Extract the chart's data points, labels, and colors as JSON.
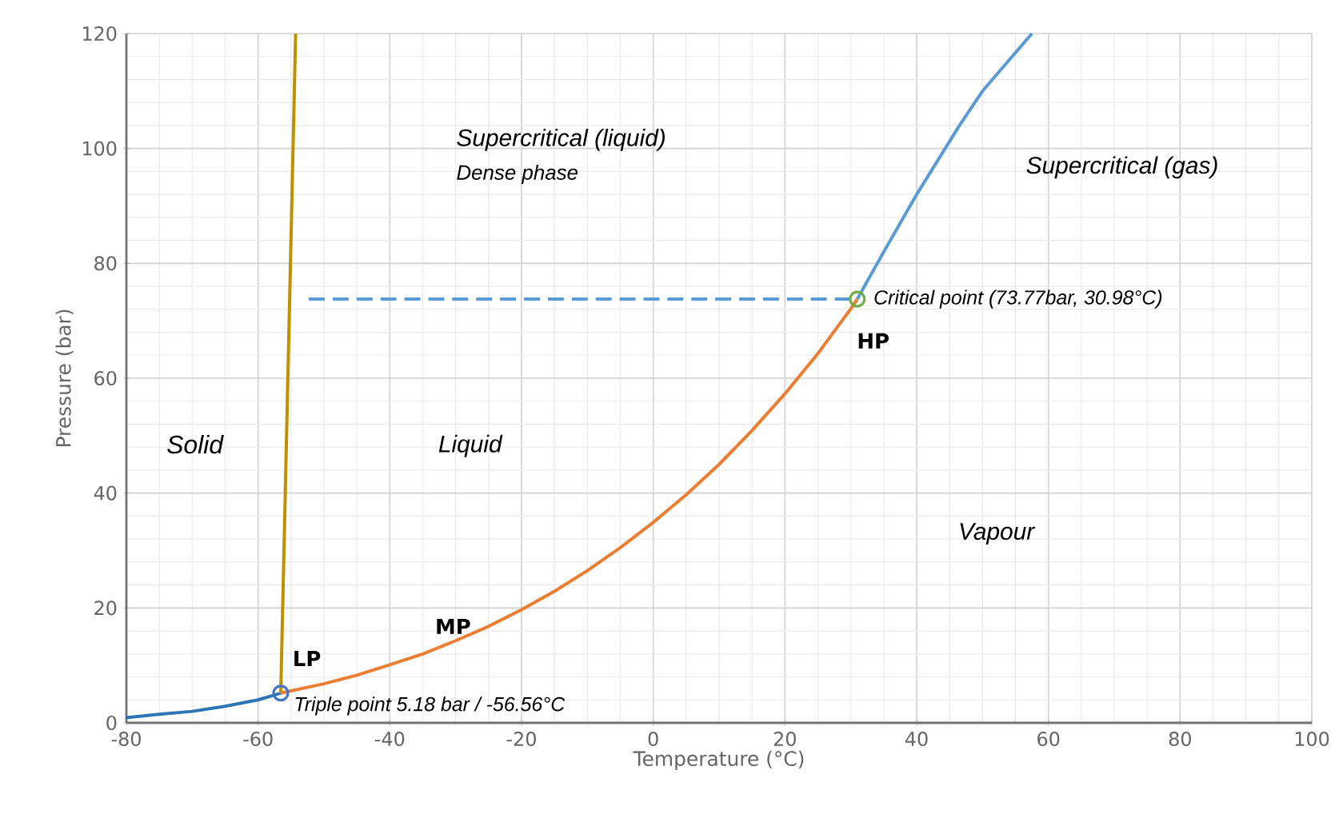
{
  "chart_data": {
    "type": "line",
    "xlabel": "Temperature (°C)",
    "ylabel": "Pressure (bar)",
    "xlim": [
      -80,
      100
    ],
    "ylim": [
      0,
      120
    ],
    "xticks": [
      -80,
      -60,
      -40,
      -20,
      0,
      20,
      40,
      60,
      80,
      100
    ],
    "yticks": [
      0,
      20,
      40,
      60,
      80,
      100,
      120
    ],
    "grid": true,
    "series": [
      {
        "color": "#2e75b6",
        "x": [
          -80,
          -75,
          -70,
          -65,
          -60,
          -56.56
        ],
        "values": [
          0.9,
          1.5,
          2.0,
          2.9,
          4.0,
          5.18
        ]
      },
      {
        "color": "#bf9000",
        "x": [
          -56.56,
          -54.3
        ],
        "values": [
          5.18,
          120
        ]
      },
      {
        "color": "#ed7d31",
        "x": [
          -56.56,
          -50,
          -45,
          -40,
          -35,
          -30,
          -25,
          -20,
          -15,
          -10,
          -5,
          0,
          5,
          10,
          15,
          20,
          25,
          30,
          30.98
        ],
        "values": [
          5.18,
          6.8,
          8.3,
          10.1,
          12.0,
          14.3,
          16.8,
          19.7,
          22.9,
          26.5,
          30.5,
          34.9,
          39.7,
          45.0,
          50.9,
          57.3,
          64.3,
          72.1,
          73.77
        ]
      },
      {
        "color": "#5b9bd5",
        "x": [
          30.98,
          35,
          40,
          46.5,
          50,
          57.5
        ],
        "values": [
          73.77,
          82,
          92,
          104,
          110,
          120
        ]
      },
      {
        "color": "#5b9bd5",
        "line_style": "dashed",
        "x": [
          -52.3,
          30.98
        ],
        "values": [
          73.77,
          73.77
        ]
      },
      {
        "type": "scatter",
        "marker": "circle",
        "color": "#4472c4",
        "x": [
          -56.56
        ],
        "values": [
          5.18
        ]
      },
      {
        "type": "scatter",
        "marker": "circle",
        "color": "#70ad47",
        "x": [
          30.98
        ],
        "values": [
          73.77
        ]
      }
    ],
    "annotations": [
      "LP",
      "MP",
      "HP",
      {
        "text": "Triple point 5.18 bar / -56.56°C",
        "x": -56.56,
        "y": 5.18
      },
      {
        "text": "Critical point (73.77bar, 30.98°C)",
        "x": 30.98,
        "y": 73.77
      },
      "Supercritical (liquid)",
      "Dense phase",
      "Supercritical (gas)",
      "Solid",
      "Liquid",
      "Vapour"
    ]
  }
}
